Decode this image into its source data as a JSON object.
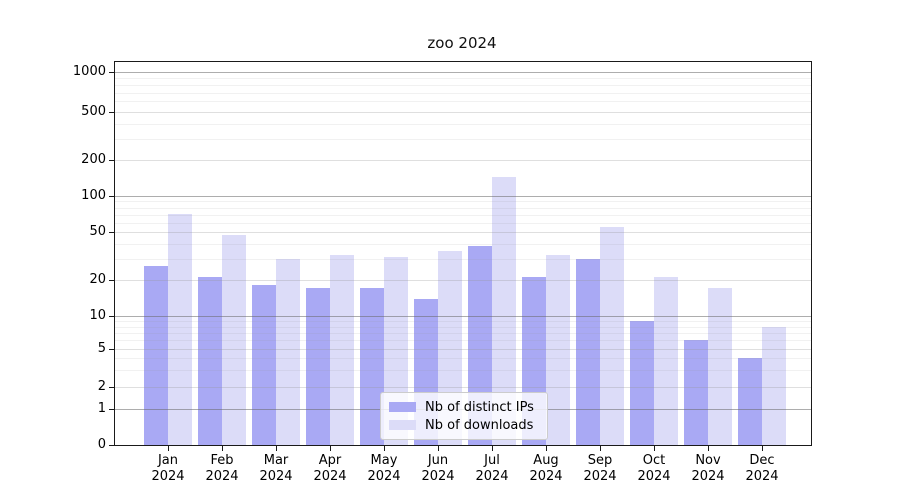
{
  "title": "zoo 2024",
  "chart_data": {
    "type": "bar",
    "title": "zoo 2024",
    "categories": [
      "Jan",
      "Feb",
      "Mar",
      "Apr",
      "May",
      "Jun",
      "Jul",
      "Aug",
      "Sep",
      "Oct",
      "Nov",
      "Dec"
    ],
    "category_year": "2024",
    "series": [
      {
        "name": "Nb of distinct IPs",
        "color": "#a9a9f4",
        "values": [
          26,
          21,
          18,
          17,
          17,
          14,
          38,
          21,
          30,
          9,
          6,
          4
        ]
      },
      {
        "name": "Nb of downloads",
        "color": "#dcdcf8",
        "values": [
          71,
          47,
          30,
          32,
          31,
          35,
          145,
          32,
          55,
          21,
          17,
          8
        ]
      }
    ],
    "yticks": [
      0,
      1,
      2,
      5,
      10,
      20,
      50,
      100,
      200,
      500,
      1000
    ],
    "ylim": [
      0,
      1200
    ],
    "scale": "log-like-with-zero",
    "grid": true,
    "legend_position": "bottom-center"
  }
}
